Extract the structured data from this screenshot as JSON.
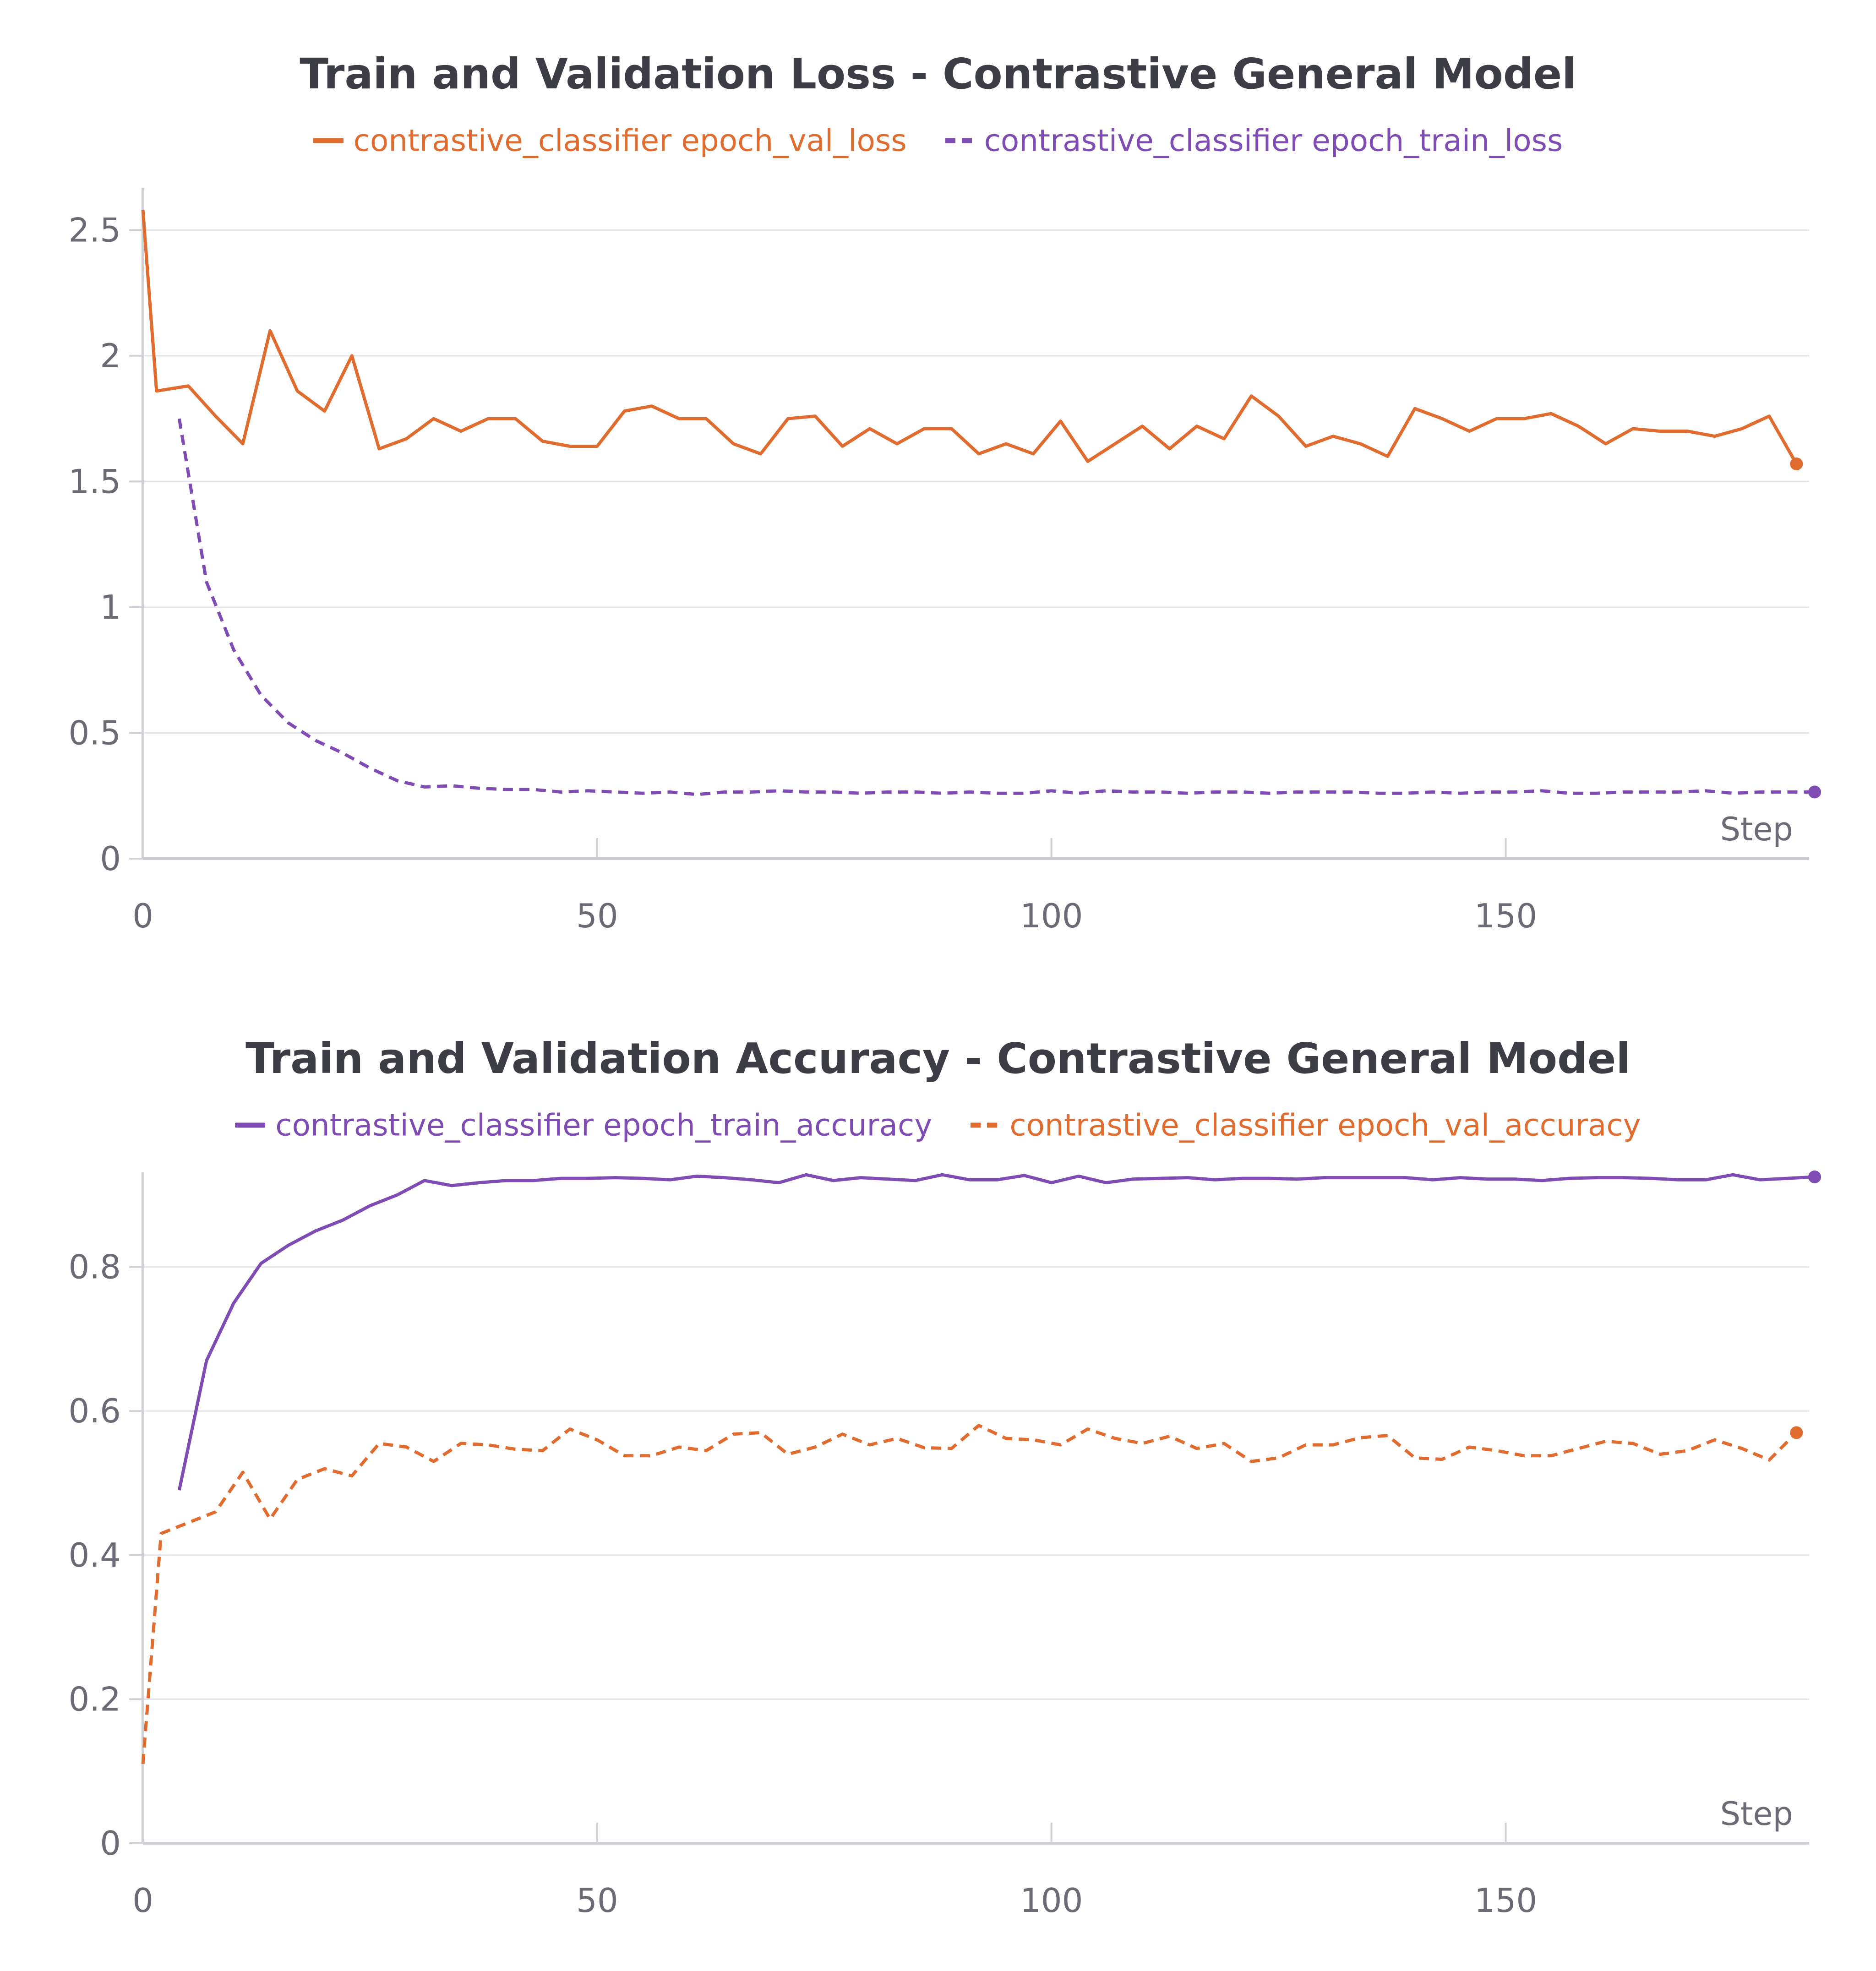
{
  "colors": {
    "orange": "#e06c2f",
    "purple": "#7e4cb3",
    "title": "#3d3d46",
    "tick": "#6b6b76",
    "grid": "#e4e4e8",
    "axis": "#cfcfd6"
  },
  "chart_data": [
    {
      "type": "line",
      "title": "Train and Validation Loss - Contrastive General Model",
      "xlabel": "Step",
      "ylabel": "",
      "xlim": [
        0,
        184
      ],
      "ylim": [
        0,
        2.65
      ],
      "xticks": [
        0,
        50,
        100,
        150
      ],
      "yticks": [
        0,
        0.5,
        1,
        1.5,
        2,
        2.5
      ],
      "ytick_labels": [
        "0",
        "0.5",
        "1",
        "1.5",
        "2",
        "2.5"
      ],
      "xtick_labels": [
        "0",
        "50",
        "100",
        "150"
      ],
      "grid": true,
      "legend_position": "top-center",
      "series": [
        {
          "name": "contrastive_classifier epoch_val_loss",
          "color": "#e06c2f",
          "style": "solid",
          "end_marker": true,
          "x": [
            0,
            1.5,
            5,
            8,
            11,
            14,
            17,
            20,
            23,
            26,
            29,
            32,
            35,
            38,
            41,
            44,
            47,
            50,
            53,
            56,
            59,
            62,
            65,
            68,
            71,
            74,
            77,
            80,
            83,
            86,
            89,
            92,
            95,
            98,
            101,
            104,
            107,
            110,
            113,
            116,
            119,
            122,
            125,
            128,
            131,
            134,
            137,
            140,
            143,
            146,
            149,
            152,
            155,
            158,
            161,
            164,
            167,
            170,
            173,
            176,
            179,
            182
          ],
          "y": [
            2.58,
            1.86,
            1.88,
            1.76,
            1.65,
            2.1,
            1.86,
            1.78,
            2.0,
            1.63,
            1.67,
            1.75,
            1.7,
            1.75,
            1.75,
            1.66,
            1.64,
            1.64,
            1.78,
            1.8,
            1.75,
            1.75,
            1.65,
            1.61,
            1.75,
            1.76,
            1.64,
            1.71,
            1.65,
            1.71,
            1.71,
            1.61,
            1.65,
            1.61,
            1.74,
            1.58,
            1.65,
            1.72,
            1.63,
            1.72,
            1.67,
            1.84,
            1.76,
            1.64,
            1.68,
            1.65,
            1.6,
            1.79,
            1.75,
            1.7,
            1.75,
            1.75,
            1.77,
            1.72,
            1.65,
            1.71,
            1.7,
            1.7,
            1.68,
            1.71,
            1.76,
            1.57
          ]
        },
        {
          "name": "contrastive_classifier epoch_train_loss",
          "color": "#7e4cb3",
          "style": "dashed",
          "end_marker": true,
          "x": [
            4,
            7,
            10,
            13,
            16,
            19,
            22,
            25,
            28,
            31,
            34,
            37,
            40,
            43,
            46,
            49,
            52,
            55,
            58,
            61,
            64,
            67,
            70,
            73,
            76,
            79,
            82,
            85,
            88,
            91,
            94,
            97,
            100,
            103,
            106,
            109,
            112,
            115,
            118,
            121,
            124,
            127,
            130,
            133,
            136,
            139,
            142,
            145,
            148,
            151,
            154,
            157,
            160,
            163,
            166,
            169,
            172,
            175,
            178,
            181,
            184
          ],
          "y": [
            1.75,
            1.1,
            0.83,
            0.65,
            0.54,
            0.47,
            0.42,
            0.36,
            0.31,
            0.285,
            0.29,
            0.28,
            0.275,
            0.275,
            0.265,
            0.27,
            0.265,
            0.26,
            0.265,
            0.255,
            0.265,
            0.265,
            0.27,
            0.265,
            0.265,
            0.26,
            0.265,
            0.265,
            0.26,
            0.265,
            0.26,
            0.26,
            0.27,
            0.26,
            0.27,
            0.265,
            0.265,
            0.26,
            0.265,
            0.265,
            0.26,
            0.265,
            0.265,
            0.265,
            0.26,
            0.26,
            0.265,
            0.26,
            0.265,
            0.265,
            0.27,
            0.26,
            0.26,
            0.265,
            0.265,
            0.265,
            0.27,
            0.26,
            0.265,
            0.265,
            0.265
          ]
        }
      ]
    },
    {
      "type": "line",
      "title": "Train and Validation Accuracy - Contrastive General Model",
      "xlabel": "Step",
      "ylabel": "",
      "xlim": [
        0,
        184
      ],
      "ylim": [
        0,
        0.925
      ],
      "xticks": [
        0,
        50,
        100,
        150
      ],
      "yticks": [
        0,
        0.2,
        0.4,
        0.6,
        0.8
      ],
      "ytick_labels": [
        "0",
        "0.2",
        "0.4",
        "0.6",
        "0.8"
      ],
      "xtick_labels": [
        "0",
        "50",
        "100",
        "150"
      ],
      "grid": true,
      "legend_position": "top-center",
      "series": [
        {
          "name": "contrastive_classifier epoch_train_accuracy",
          "color": "#7e4cb3",
          "style": "solid",
          "end_marker": true,
          "x": [
            4,
            7,
            10,
            13,
            16,
            19,
            22,
            25,
            28,
            31,
            34,
            37,
            40,
            43,
            46,
            49,
            52,
            55,
            58,
            61,
            64,
            67,
            70,
            73,
            76,
            79,
            82,
            85,
            88,
            91,
            94,
            97,
            100,
            103,
            106,
            109,
            112,
            115,
            118,
            121,
            124,
            127,
            130,
            133,
            136,
            139,
            142,
            145,
            148,
            151,
            154,
            157,
            160,
            163,
            166,
            169,
            172,
            175,
            178,
            181,
            184
          ],
          "y": [
            0.49,
            0.67,
            0.75,
            0.805,
            0.83,
            0.85,
            0.865,
            0.885,
            0.9,
            0.92,
            0.913,
            0.917,
            0.92,
            0.92,
            0.923,
            0.923,
            0.924,
            0.923,
            0.921,
            0.926,
            0.924,
            0.921,
            0.917,
            0.928,
            0.92,
            0.924,
            0.922,
            0.92,
            0.928,
            0.921,
            0.921,
            0.927,
            0.917,
            0.926,
            0.917,
            0.922,
            0.923,
            0.924,
            0.921,
            0.923,
            0.923,
            0.922,
            0.924,
            0.924,
            0.924,
            0.924,
            0.921,
            0.924,
            0.922,
            0.922,
            0.92,
            0.923,
            0.924,
            0.924,
            0.923,
            0.921,
            0.921,
            0.928,
            0.921,
            0.923,
            0.925
          ]
        },
        {
          "name": "contrastive_classifier epoch_val_accuracy",
          "color": "#e06c2f",
          "style": "dashed",
          "end_marker": true,
          "x": [
            0,
            2,
            5,
            8,
            11,
            14,
            17,
            20,
            23,
            26,
            29,
            32,
            35,
            38,
            41,
            44,
            47,
            50,
            53,
            56,
            59,
            62,
            65,
            68,
            71,
            74,
            77,
            80,
            83,
            86,
            89,
            92,
            95,
            98,
            101,
            104,
            107,
            110,
            113,
            116,
            119,
            122,
            125,
            128,
            131,
            134,
            137,
            140,
            143,
            146,
            149,
            152,
            155,
            158,
            161,
            164,
            167,
            170,
            173,
            176,
            179,
            182
          ],
          "y": [
            0.11,
            0.43,
            0.445,
            0.46,
            0.515,
            0.45,
            0.505,
            0.52,
            0.51,
            0.555,
            0.55,
            0.53,
            0.555,
            0.553,
            0.547,
            0.545,
            0.575,
            0.56,
            0.538,
            0.538,
            0.55,
            0.545,
            0.568,
            0.57,
            0.54,
            0.55,
            0.568,
            0.553,
            0.562,
            0.549,
            0.548,
            0.58,
            0.562,
            0.56,
            0.553,
            0.575,
            0.562,
            0.555,
            0.565,
            0.548,
            0.555,
            0.53,
            0.535,
            0.553,
            0.553,
            0.563,
            0.566,
            0.535,
            0.533,
            0.55,
            0.545,
            0.538,
            0.538,
            0.548,
            0.558,
            0.555,
            0.54,
            0.545,
            0.56,
            0.548,
            0.532,
            0.57
          ]
        }
      ]
    }
  ]
}
